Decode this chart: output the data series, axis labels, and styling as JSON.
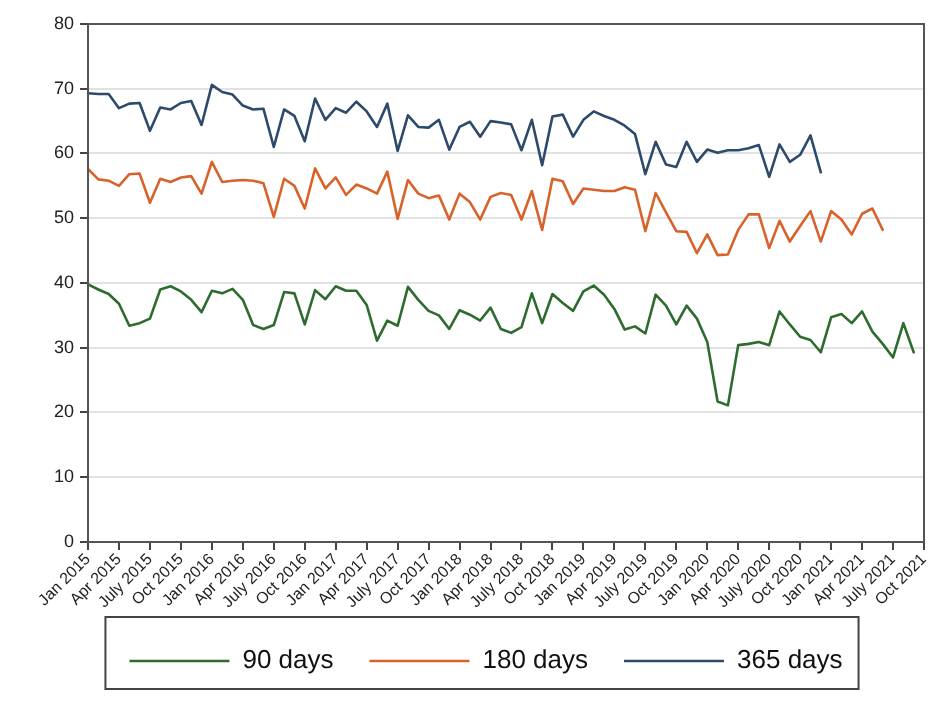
{
  "chart_data": {
    "type": "line",
    "categories": [
      "Jan 2015",
      null,
      null,
      "Apr 2015",
      null,
      null,
      "July 2015",
      null,
      null,
      "Oct 2015",
      null,
      null,
      "Jan 2016",
      null,
      null,
      "Apr 2016",
      null,
      null,
      "July 2016",
      null,
      null,
      "Oct 2016",
      null,
      null,
      "Jan 2017",
      null,
      null,
      "Apr 2017",
      null,
      null,
      "July 2017",
      null,
      null,
      "Oct 2017",
      null,
      null,
      "Jan 2018",
      null,
      null,
      "Apr 2018",
      null,
      null,
      "July 2018",
      null,
      null,
      "Oct 2018",
      null,
      null,
      "Jan 2019",
      null,
      null,
      "Apr 2019",
      null,
      null,
      "July 2019",
      null,
      null,
      "Oct 2019",
      null,
      null,
      "Jan 2020",
      null,
      null,
      "Apr 2020",
      null,
      null,
      "July 2020",
      null,
      null,
      "Oct 2020",
      null,
      null,
      "Jan 2021",
      null,
      null,
      "Apr 2021",
      null,
      null,
      "July 2021",
      null,
      null,
      "Oct 2021"
    ],
    "series": [
      {
        "name": "90 days",
        "color": "#2e6b2e",
        "values": [
          39.8,
          39,
          38.3,
          36.8,
          33.4,
          33.8,
          34.5,
          39,
          39.5,
          38.7,
          37.4,
          35.5,
          38.8,
          38.4,
          39.1,
          37.4,
          33.5,
          32.9,
          33.5,
          38.6,
          38.4,
          33.6,
          38.9,
          37.5,
          39.5,
          38.8,
          38.8,
          36.6,
          31.1,
          34.2,
          33.4,
          39.4,
          37.4,
          35.7,
          35,
          32.9,
          35.8,
          35.1,
          34.2,
          36.2,
          32.9,
          32.3,
          33.2,
          38.4,
          33.8,
          38.3,
          36.9,
          35.7,
          38.7,
          39.6,
          38.2,
          36,
          32.8,
          33.3,
          32.2,
          38.2,
          36.5,
          33.6,
          36.5,
          34.5,
          30.9,
          21.7,
          21.1,
          30.4,
          30.6,
          30.9,
          30.4,
          35.6,
          33.6,
          31.7,
          31.2,
          29.3,
          34.7,
          35.2,
          33.8,
          35.6,
          32.5,
          30.6,
          28.5,
          33.8,
          29.3,
          null
        ]
      },
      {
        "name": "180 days",
        "color": "#d9622b",
        "values": [
          57.6,
          56,
          55.8,
          55,
          56.8,
          56.9,
          52.4,
          56.1,
          55.6,
          56.3,
          56.5,
          53.8,
          58.7,
          55.6,
          55.8,
          55.9,
          55.8,
          55.4,
          50.2,
          56.1,
          55,
          51.5,
          57.7,
          54.6,
          56.3,
          53.6,
          55.2,
          54.6,
          53.8,
          57.2,
          49.9,
          55.9,
          53.8,
          53.1,
          53.5,
          49.8,
          53.8,
          52.5,
          49.8,
          53.3,
          53.9,
          53.6,
          49.8,
          54.2,
          48.2,
          56.1,
          55.7,
          52.2,
          54.6,
          54.4,
          54.2,
          54.2,
          54.8,
          54.4,
          48,
          53.9,
          50.9,
          48,
          47.9,
          44.6,
          47.5,
          44.3,
          44.4,
          48.2,
          50.6,
          50.6,
          45.4,
          49.6,
          46.4,
          48.8,
          51.1,
          46.4,
          51.1,
          49.8,
          47.5,
          50.7,
          51.5,
          48.2,
          null,
          null,
          null,
          null
        ]
      },
      {
        "name": "365 days",
        "color": "#2d4a6b",
        "values": [
          69.3,
          69.2,
          69.2,
          67,
          67.7,
          67.8,
          63.5,
          67.1,
          66.8,
          67.8,
          68.1,
          64.4,
          70.6,
          69.5,
          69.1,
          67.4,
          66.8,
          66.9,
          61,
          66.8,
          65.8,
          61.9,
          68.5,
          65.2,
          67,
          66.3,
          68,
          66.5,
          64.1,
          67.7,
          60.4,
          65.9,
          64.1,
          64,
          65.2,
          60.6,
          64.1,
          64.9,
          62.6,
          65,
          64.8,
          64.5,
          60.5,
          65.2,
          58.2,
          65.7,
          66,
          62.6,
          65.2,
          66.5,
          65.8,
          65.2,
          64.3,
          63,
          56.8,
          61.8,
          58.3,
          57.9,
          61.8,
          58.7,
          60.6,
          60.1,
          60.5,
          60.5,
          60.8,
          61.3,
          56.4,
          61.4,
          58.7,
          59.8,
          62.8,
          57.1,
          null,
          null,
          null,
          null,
          null,
          null,
          null,
          null,
          null,
          null
        ]
      }
    ],
    "ylim": [
      0,
      80
    ],
    "yticks": [
      0,
      10,
      20,
      30,
      40,
      50,
      60,
      70,
      80
    ],
    "grid": "y",
    "legend": "bottom",
    "marker": "none",
    "line_style": "solid"
  }
}
